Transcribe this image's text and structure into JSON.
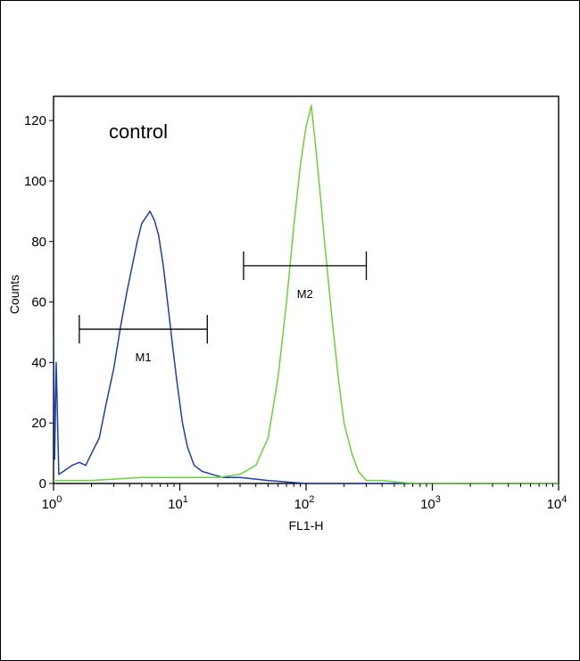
{
  "chart_data": {
    "type": "line",
    "title": "",
    "annotation": "control",
    "xlabel": "FL1-H",
    "ylabel": "Counts",
    "x_scale": "log",
    "xlim": [
      1,
      10000
    ],
    "ylim": [
      0,
      128
    ],
    "y_ticks": [
      0,
      20,
      40,
      60,
      80,
      100,
      120
    ],
    "x_ticks": [
      {
        "base": "10",
        "exp": "0",
        "value": 1
      },
      {
        "base": "10",
        "exp": "1",
        "value": 10
      },
      {
        "base": "10",
        "exp": "2",
        "value": 100
      },
      {
        "base": "10",
        "exp": "3",
        "value": 1000
      },
      {
        "base": "10",
        "exp": "4",
        "value": 10000
      }
    ],
    "grid": false,
    "series": [
      {
        "color": "#1f3fa8",
        "x": [
          1.0,
          1.02,
          1.05,
          1.1,
          1.2,
          1.4,
          1.6,
          1.8,
          2.0,
          2.3,
          2.6,
          3.0,
          3.4,
          3.8,
          4.2,
          4.6,
          5.0,
          5.4,
          5.8,
          6.3,
          6.8,
          7.4,
          8.0,
          8.8,
          9.6,
          10.5,
          11.5,
          13,
          15,
          18,
          22,
          30,
          50,
          100,
          1000,
          10000
        ],
        "y": [
          50,
          8,
          40,
          3,
          4,
          6,
          7,
          6,
          10,
          15,
          26,
          38,
          52,
          63,
          72,
          80,
          86,
          88,
          90,
          87,
          82,
          72,
          60,
          45,
          32,
          20,
          12,
          6,
          4,
          3,
          2,
          2,
          1,
          0,
          0,
          0
        ]
      },
      {
        "color": "#6fcf3a",
        "x": [
          1,
          2,
          5,
          10,
          20,
          30,
          40,
          50,
          60,
          70,
          80,
          90,
          100,
          110,
          120,
          130,
          140,
          160,
          180,
          200,
          230,
          260,
          300,
          400,
          700,
          1000,
          10000
        ],
        "y": [
          1,
          1,
          2,
          2,
          2,
          3,
          6,
          15,
          35,
          60,
          85,
          105,
          118,
          125,
          110,
          95,
          80,
          55,
          35,
          20,
          10,
          4,
          1,
          1,
          0,
          0,
          0
        ]
      }
    ],
    "markers": [
      {
        "label": "M1",
        "x_start": 1.6,
        "x_end": 16.5,
        "y": 51
      },
      {
        "label": "M2",
        "x_start": 32,
        "x_end": 300,
        "y": 72
      }
    ]
  }
}
